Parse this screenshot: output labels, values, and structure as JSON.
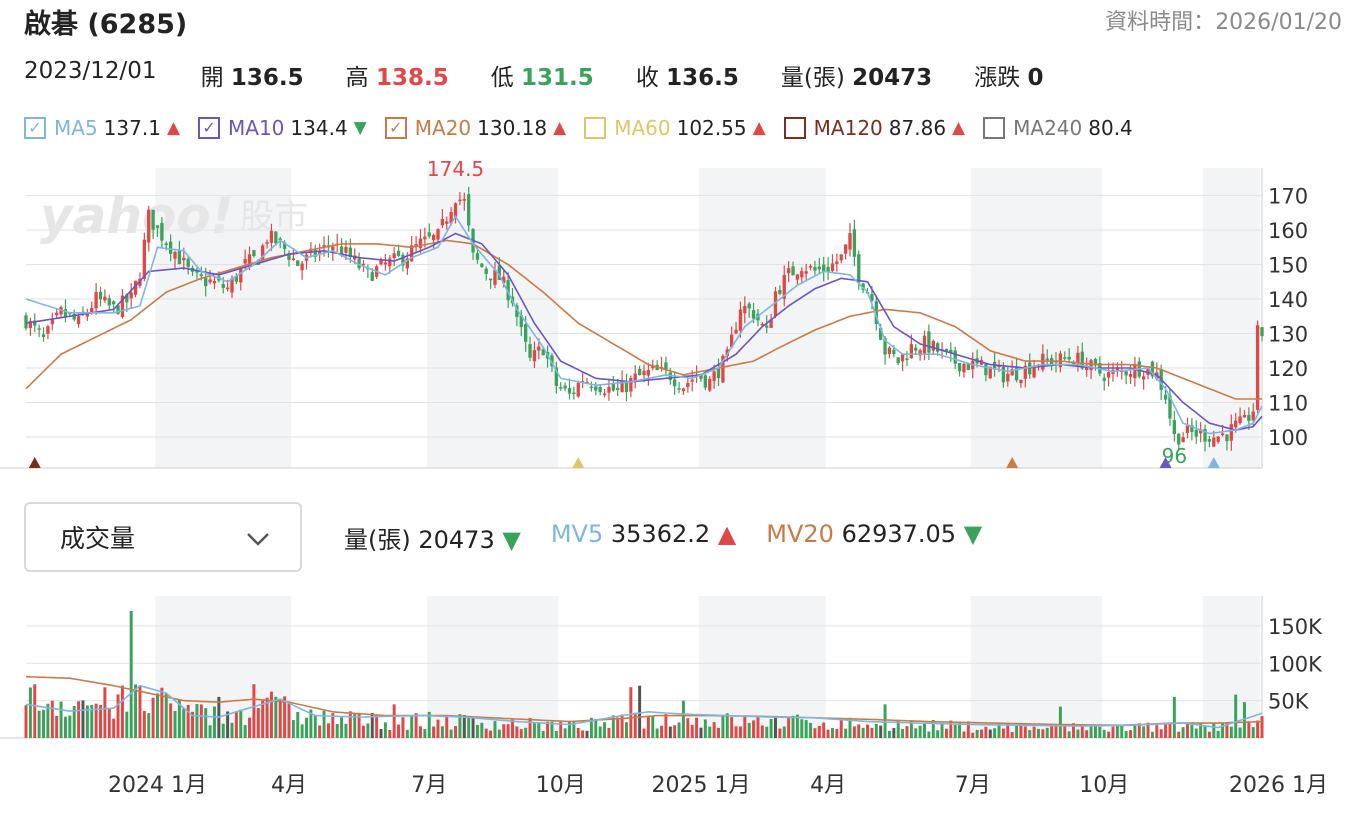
{
  "header": {
    "title": "啟碁 (6285)",
    "asof_label": "資料時間：",
    "asof_value": "2026/01/20"
  },
  "ohlc": {
    "date": "2023/12/01",
    "open_label": "開",
    "open": "136.5",
    "high_label": "高",
    "high": "138.5",
    "low_label": "低",
    "low": "131.5",
    "close_label": "收",
    "close": "136.5",
    "volume_label": "量(張)",
    "volume": "20473",
    "change_label": "漲跌",
    "change": "0"
  },
  "ma": [
    {
      "name": "MA5",
      "value": "137.1",
      "arrow": "▲",
      "dir": "up",
      "checked": true,
      "color": "#7fb6e0"
    },
    {
      "name": "MA10",
      "value": "134.4",
      "arrow": "▼",
      "dir": "down",
      "checked": true,
      "color": "#6a55c4"
    },
    {
      "name": "MA20",
      "value": "130.18",
      "arrow": "▲",
      "dir": "up",
      "checked": true,
      "color": "#cc7a45"
    },
    {
      "name": "MA60",
      "value": "102.55",
      "arrow": "▲",
      "dir": "up",
      "checked": false,
      "color": "#e1c468"
    },
    {
      "name": "MA120",
      "value": "87.86",
      "arrow": "▲",
      "dir": "up",
      "checked": false,
      "color": "#7b2e1c"
    },
    {
      "name": "MA240",
      "value": "80.4",
      "arrow": "",
      "dir": "none",
      "checked": false,
      "color": "#777777"
    }
  ],
  "check_glyph": "✓",
  "watermark": {
    "brand": "yahoo!",
    "suffix": "股市"
  },
  "volume_panel": {
    "selector_label": "成交量",
    "volume_label": "量(張)",
    "volume_value": "20473",
    "volume_arrow": "▼",
    "mv5_label": "MV5",
    "mv5_value": "35362.2",
    "mv5_arrow": "▲",
    "mv20_label": "MV20",
    "mv20_value": "62937.05",
    "mv20_arrow": "▼"
  },
  "colors": {
    "up": "#e04848",
    "down": "#3aa35a",
    "mv5": "#7fb6e0",
    "mv10": "#6a55c4",
    "mv20": "#cc7a45",
    "shade": "#f3f4f6",
    "grid": "#e2e2e2",
    "flat": "#555555"
  },
  "chart_data": [
    {
      "type": "candlestick",
      "x_ticks": [
        "2024 1月",
        "4月",
        "7月",
        "10月",
        "2025 1月",
        "4月",
        "7月",
        "10月",
        "2026 1月"
      ],
      "y_ticks": [
        100,
        110,
        120,
        130,
        140,
        150,
        160,
        170
      ],
      "ylim": [
        91,
        178
      ],
      "annotations": {
        "high_label": "174.5",
        "low_label": "96"
      },
      "anchors": [
        [
          0,
          134
        ],
        [
          4,
          128
        ],
        [
          8,
          136
        ],
        [
          12,
          133
        ],
        [
          16,
          140
        ],
        [
          20,
          137
        ],
        [
          24,
          140
        ],
        [
          26,
          148
        ],
        [
          28,
          164
        ],
        [
          30,
          160
        ],
        [
          32,
          157
        ],
        [
          35,
          152
        ],
        [
          38,
          146
        ],
        [
          42,
          145
        ],
        [
          46,
          143
        ],
        [
          50,
          150
        ],
        [
          53,
          152
        ],
        [
          55,
          158
        ],
        [
          58,
          156
        ],
        [
          62,
          150
        ],
        [
          66,
          153
        ],
        [
          70,
          156
        ],
        [
          74,
          152
        ],
        [
          78,
          147
        ],
        [
          82,
          150
        ],
        [
          86,
          152
        ],
        [
          90,
          156
        ],
        [
          94,
          158
        ],
        [
          98,
          170
        ],
        [
          100,
          168
        ],
        [
          102,
          152
        ],
        [
          105,
          148
        ],
        [
          108,
          146
        ],
        [
          111,
          140
        ],
        [
          113,
          130
        ],
        [
          115,
          122
        ],
        [
          118,
          126
        ],
        [
          121,
          115
        ],
        [
          124,
          112
        ],
        [
          127,
          117
        ],
        [
          131,
          115
        ],
        [
          135,
          113
        ],
        [
          139,
          117
        ],
        [
          143,
          119
        ],
        [
          147,
          118
        ],
        [
          150,
          115
        ],
        [
          153,
          118
        ],
        [
          156,
          116
        ],
        [
          160,
          123
        ],
        [
          163,
          138
        ],
        [
          166,
          136
        ],
        [
          169,
          130
        ],
        [
          171,
          142
        ],
        [
          174,
          147
        ],
        [
          177,
          150
        ],
        [
          180,
          148
        ],
        [
          183,
          149
        ],
        [
          186,
          152
        ],
        [
          188,
          157
        ],
        [
          190,
          147
        ],
        [
          193,
          140
        ],
        [
          196,
          125
        ],
        [
          199,
          122
        ],
        [
          202,
          126
        ],
        [
          205,
          127
        ],
        [
          208,
          125
        ],
        [
          211,
          122
        ],
        [
          215,
          121
        ],
        [
          219,
          120
        ],
        [
          223,
          118
        ],
        [
          227,
          119
        ],
        [
          231,
          122
        ],
        [
          235,
          122
        ],
        [
          238,
          123
        ],
        [
          241,
          122
        ],
        [
          244,
          119
        ],
        [
          247,
          118
        ],
        [
          250,
          119
        ],
        [
          253,
          120
        ],
        [
          256,
          120
        ],
        [
          258,
          118
        ],
        [
          260,
          112
        ],
        [
          262,
          100
        ],
        [
          265,
          101
        ],
        [
          268,
          101
        ],
        [
          271,
          100
        ],
        [
          274,
          101
        ],
        [
          276,
          103
        ],
        [
          278,
          104
        ],
        [
          280,
          108
        ],
        [
          281,
          130
        ]
      ],
      "ma5_anchors": [
        [
          0,
          140
        ],
        [
          10,
          136
        ],
        [
          20,
          136
        ],
        [
          26,
          138
        ],
        [
          30,
          155
        ],
        [
          36,
          154
        ],
        [
          40,
          148
        ],
        [
          46,
          145
        ],
        [
          52,
          150
        ],
        [
          58,
          157
        ],
        [
          64,
          152
        ],
        [
          70,
          154
        ],
        [
          76,
          150
        ],
        [
          82,
          147
        ],
        [
          88,
          152
        ],
        [
          94,
          155
        ],
        [
          98,
          164
        ],
        [
          102,
          156
        ],
        [
          108,
          147
        ],
        [
          112,
          137
        ],
        [
          118,
          126
        ],
        [
          122,
          117
        ],
        [
          130,
          115
        ],
        [
          138,
          116
        ],
        [
          146,
          118
        ],
        [
          152,
          117
        ],
        [
          158,
          120
        ],
        [
          164,
          132
        ],
        [
          170,
          138
        ],
        [
          176,
          144
        ],
        [
          182,
          148
        ],
        [
          188,
          147
        ],
        [
          192,
          142
        ],
        [
          196,
          128
        ],
        [
          200,
          124
        ],
        [
          208,
          124
        ],
        [
          216,
          121
        ],
        [
          224,
          119
        ],
        [
          232,
          121
        ],
        [
          240,
          121
        ],
        [
          248,
          119
        ],
        [
          256,
          120
        ],
        [
          260,
          114
        ],
        [
          264,
          104
        ],
        [
          270,
          101
        ],
        [
          276,
          102
        ],
        [
          280,
          104
        ],
        [
          282,
          109
        ]
      ],
      "ma10_anchors": [
        [
          0,
          133
        ],
        [
          10,
          135
        ],
        [
          20,
          137
        ],
        [
          28,
          148
        ],
        [
          36,
          149
        ],
        [
          44,
          147
        ],
        [
          52,
          150
        ],
        [
          60,
          153
        ],
        [
          68,
          154
        ],
        [
          76,
          152
        ],
        [
          84,
          151
        ],
        [
          92,
          155
        ],
        [
          98,
          159
        ],
        [
          104,
          156
        ],
        [
          110,
          147
        ],
        [
          116,
          133
        ],
        [
          122,
          122
        ],
        [
          130,
          117
        ],
        [
          138,
          116
        ],
        [
          146,
          117
        ],
        [
          154,
          118
        ],
        [
          162,
          124
        ],
        [
          168,
          132
        ],
        [
          174,
          138
        ],
        [
          180,
          143
        ],
        [
          186,
          146
        ],
        [
          192,
          145
        ],
        [
          198,
          132
        ],
        [
          204,
          127
        ],
        [
          212,
          124
        ],
        [
          220,
          121
        ],
        [
          228,
          120
        ],
        [
          236,
          121
        ],
        [
          244,
          120
        ],
        [
          252,
          120
        ],
        [
          258,
          118
        ],
        [
          264,
          110
        ],
        [
          270,
          104
        ],
        [
          276,
          102
        ],
        [
          280,
          103
        ],
        [
          282,
          106
        ]
      ],
      "ma20_anchors": [
        [
          0,
          114
        ],
        [
          8,
          124
        ],
        [
          16,
          129
        ],
        [
          24,
          134
        ],
        [
          32,
          142
        ],
        [
          40,
          146
        ],
        [
          48,
          149
        ],
        [
          56,
          152
        ],
        [
          64,
          154
        ],
        [
          72,
          156
        ],
        [
          80,
          156
        ],
        [
          88,
          155
        ],
        [
          96,
          157
        ],
        [
          102,
          156
        ],
        [
          110,
          150
        ],
        [
          118,
          142
        ],
        [
          126,
          133
        ],
        [
          134,
          127
        ],
        [
          142,
          121
        ],
        [
          150,
          118
        ],
        [
          158,
          120
        ],
        [
          166,
          122
        ],
        [
          172,
          126
        ],
        [
          180,
          131
        ],
        [
          188,
          135
        ],
        [
          196,
          137
        ],
        [
          204,
          136
        ],
        [
          212,
          132
        ],
        [
          220,
          125
        ],
        [
          228,
          122
        ],
        [
          236,
          122
        ],
        [
          244,
          121
        ],
        [
          252,
          121
        ],
        [
          258,
          120
        ],
        [
          264,
          117
        ],
        [
          270,
          114
        ],
        [
          276,
          111
        ],
        [
          282,
          111
        ]
      ],
      "markers": [
        {
          "i": 2,
          "color": "#7b2e1c"
        },
        {
          "i": 126,
          "color": "#e1c468"
        },
        {
          "i": 225,
          "color": "#cc7a45"
        },
        {
          "i": 260,
          "color": "#6a55c4"
        },
        {
          "i": 271,
          "color": "#7fb6e0"
        }
      ]
    },
    {
      "type": "bar",
      "y_ticks": [
        50000,
        100000,
        150000
      ],
      "y_tick_labels": [
        "50K",
        "100K",
        "150K"
      ],
      "ylim": [
        0,
        190000
      ],
      "spikes": [
        [
          24,
          170000
        ],
        [
          35,
          52000
        ],
        [
          44,
          55000
        ],
        [
          52,
          72000
        ],
        [
          56,
          62000
        ],
        [
          84,
          45000
        ],
        [
          138,
          68000
        ],
        [
          140,
          70000
        ],
        [
          150,
          50000
        ],
        [
          196,
          45000
        ],
        [
          236,
          42000
        ],
        [
          262,
          55000
        ],
        [
          276,
          58000
        ],
        [
          278,
          48000
        ]
      ],
      "mv5_anchors": [
        [
          0,
          45000
        ],
        [
          10,
          36000
        ],
        [
          20,
          40000
        ],
        [
          26,
          70000
        ],
        [
          32,
          60000
        ],
        [
          38,
          30000
        ],
        [
          44,
          28000
        ],
        [
          52,
          42000
        ],
        [
          58,
          52000
        ],
        [
          66,
          30000
        ],
        [
          76,
          28000
        ],
        [
          90,
          30000
        ],
        [
          100,
          28000
        ],
        [
          112,
          22000
        ],
        [
          124,
          18000
        ],
        [
          136,
          30000
        ],
        [
          142,
          35000
        ],
        [
          150,
          32000
        ],
        [
          160,
          30000
        ],
        [
          170,
          28000
        ],
        [
          180,
          27000
        ],
        [
          192,
          22000
        ],
        [
          204,
          20000
        ],
        [
          216,
          18000
        ],
        [
          228,
          17000
        ],
        [
          240,
          16000
        ],
        [
          252,
          17000
        ],
        [
          264,
          20000
        ],
        [
          272,
          14000
        ],
        [
          282,
          33000
        ]
      ],
      "mv20_anchors": [
        [
          0,
          82000
        ],
        [
          10,
          80000
        ],
        [
          20,
          70000
        ],
        [
          28,
          60000
        ],
        [
          36,
          50000
        ],
        [
          44,
          48000
        ],
        [
          52,
          52000
        ],
        [
          60,
          48000
        ],
        [
          70,
          35000
        ],
        [
          82,
          30000
        ],
        [
          96,
          30000
        ],
        [
          110,
          26000
        ],
        [
          124,
          22000
        ],
        [
          136,
          26000
        ],
        [
          144,
          30000
        ],
        [
          156,
          30000
        ],
        [
          168,
          29000
        ],
        [
          180,
          27000
        ],
        [
          192,
          25000
        ],
        [
          206,
          22000
        ],
        [
          220,
          20000
        ],
        [
          236,
          18000
        ],
        [
          250,
          17000
        ],
        [
          262,
          20000
        ],
        [
          272,
          20000
        ],
        [
          282,
          22000
        ]
      ]
    }
  ]
}
